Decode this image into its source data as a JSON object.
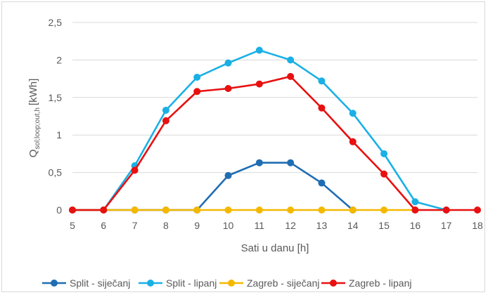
{
  "chart_data": {
    "type": "line",
    "title": "",
    "xlabel": "Sati u danu [h]",
    "ylabel": {
      "base": "Q",
      "subscript": "sol;loop;out,h",
      "unit": "[kWh]"
    },
    "x": [
      5,
      6,
      7,
      8,
      9,
      10,
      11,
      12,
      13,
      14,
      15,
      16,
      17,
      18
    ],
    "x_tick_labels": [
      "5",
      "6",
      "7",
      "8",
      "9",
      "10",
      "11",
      "12",
      "13",
      "14",
      "15",
      "16",
      "17",
      "18"
    ],
    "ylim": [
      0,
      2.5
    ],
    "y_ticks": [
      0,
      0.5,
      1,
      1.5,
      2,
      2.5
    ],
    "y_tick_labels": [
      "0",
      "0,5",
      "1",
      "1,5",
      "2",
      "2,5"
    ],
    "grid": "horizontal",
    "legend_position": "bottom",
    "series": [
      {
        "name": "Split - siječanj",
        "color": "#1f6db3",
        "x": [
          5,
          6,
          7,
          8,
          9,
          10,
          11,
          12,
          13,
          14
        ],
        "values": [
          0,
          0,
          0,
          0,
          0,
          0.46,
          0.63,
          0.63,
          0.36,
          0
        ]
      },
      {
        "name": "Split - lipanj",
        "color": "#1ab0e6",
        "x": [
          5,
          6,
          7,
          8,
          9,
          10,
          11,
          12,
          13,
          14,
          15,
          16,
          17
        ],
        "values": [
          0,
          0,
          0.59,
          1.33,
          1.77,
          1.96,
          2.13,
          2.0,
          1.72,
          1.29,
          0.75,
          0.11,
          0
        ]
      },
      {
        "name": "Zagreb - siječanj",
        "color": "#f5b800",
        "x": [
          5,
          6,
          7,
          8,
          9,
          10,
          11,
          12,
          13,
          14,
          15,
          16
        ],
        "values": [
          0,
          0,
          0,
          0,
          0,
          0,
          0,
          0,
          0,
          0,
          0,
          0
        ]
      },
      {
        "name": "Zagreb - lipanj",
        "color": "#e81010",
        "x": [
          5,
          6,
          7,
          8,
          9,
          10,
          11,
          12,
          13,
          14,
          15,
          16,
          17,
          18
        ],
        "values": [
          0,
          0,
          0.53,
          1.19,
          1.58,
          1.62,
          1.68,
          1.78,
          1.36,
          0.91,
          0.48,
          0,
          0,
          0
        ]
      }
    ]
  }
}
